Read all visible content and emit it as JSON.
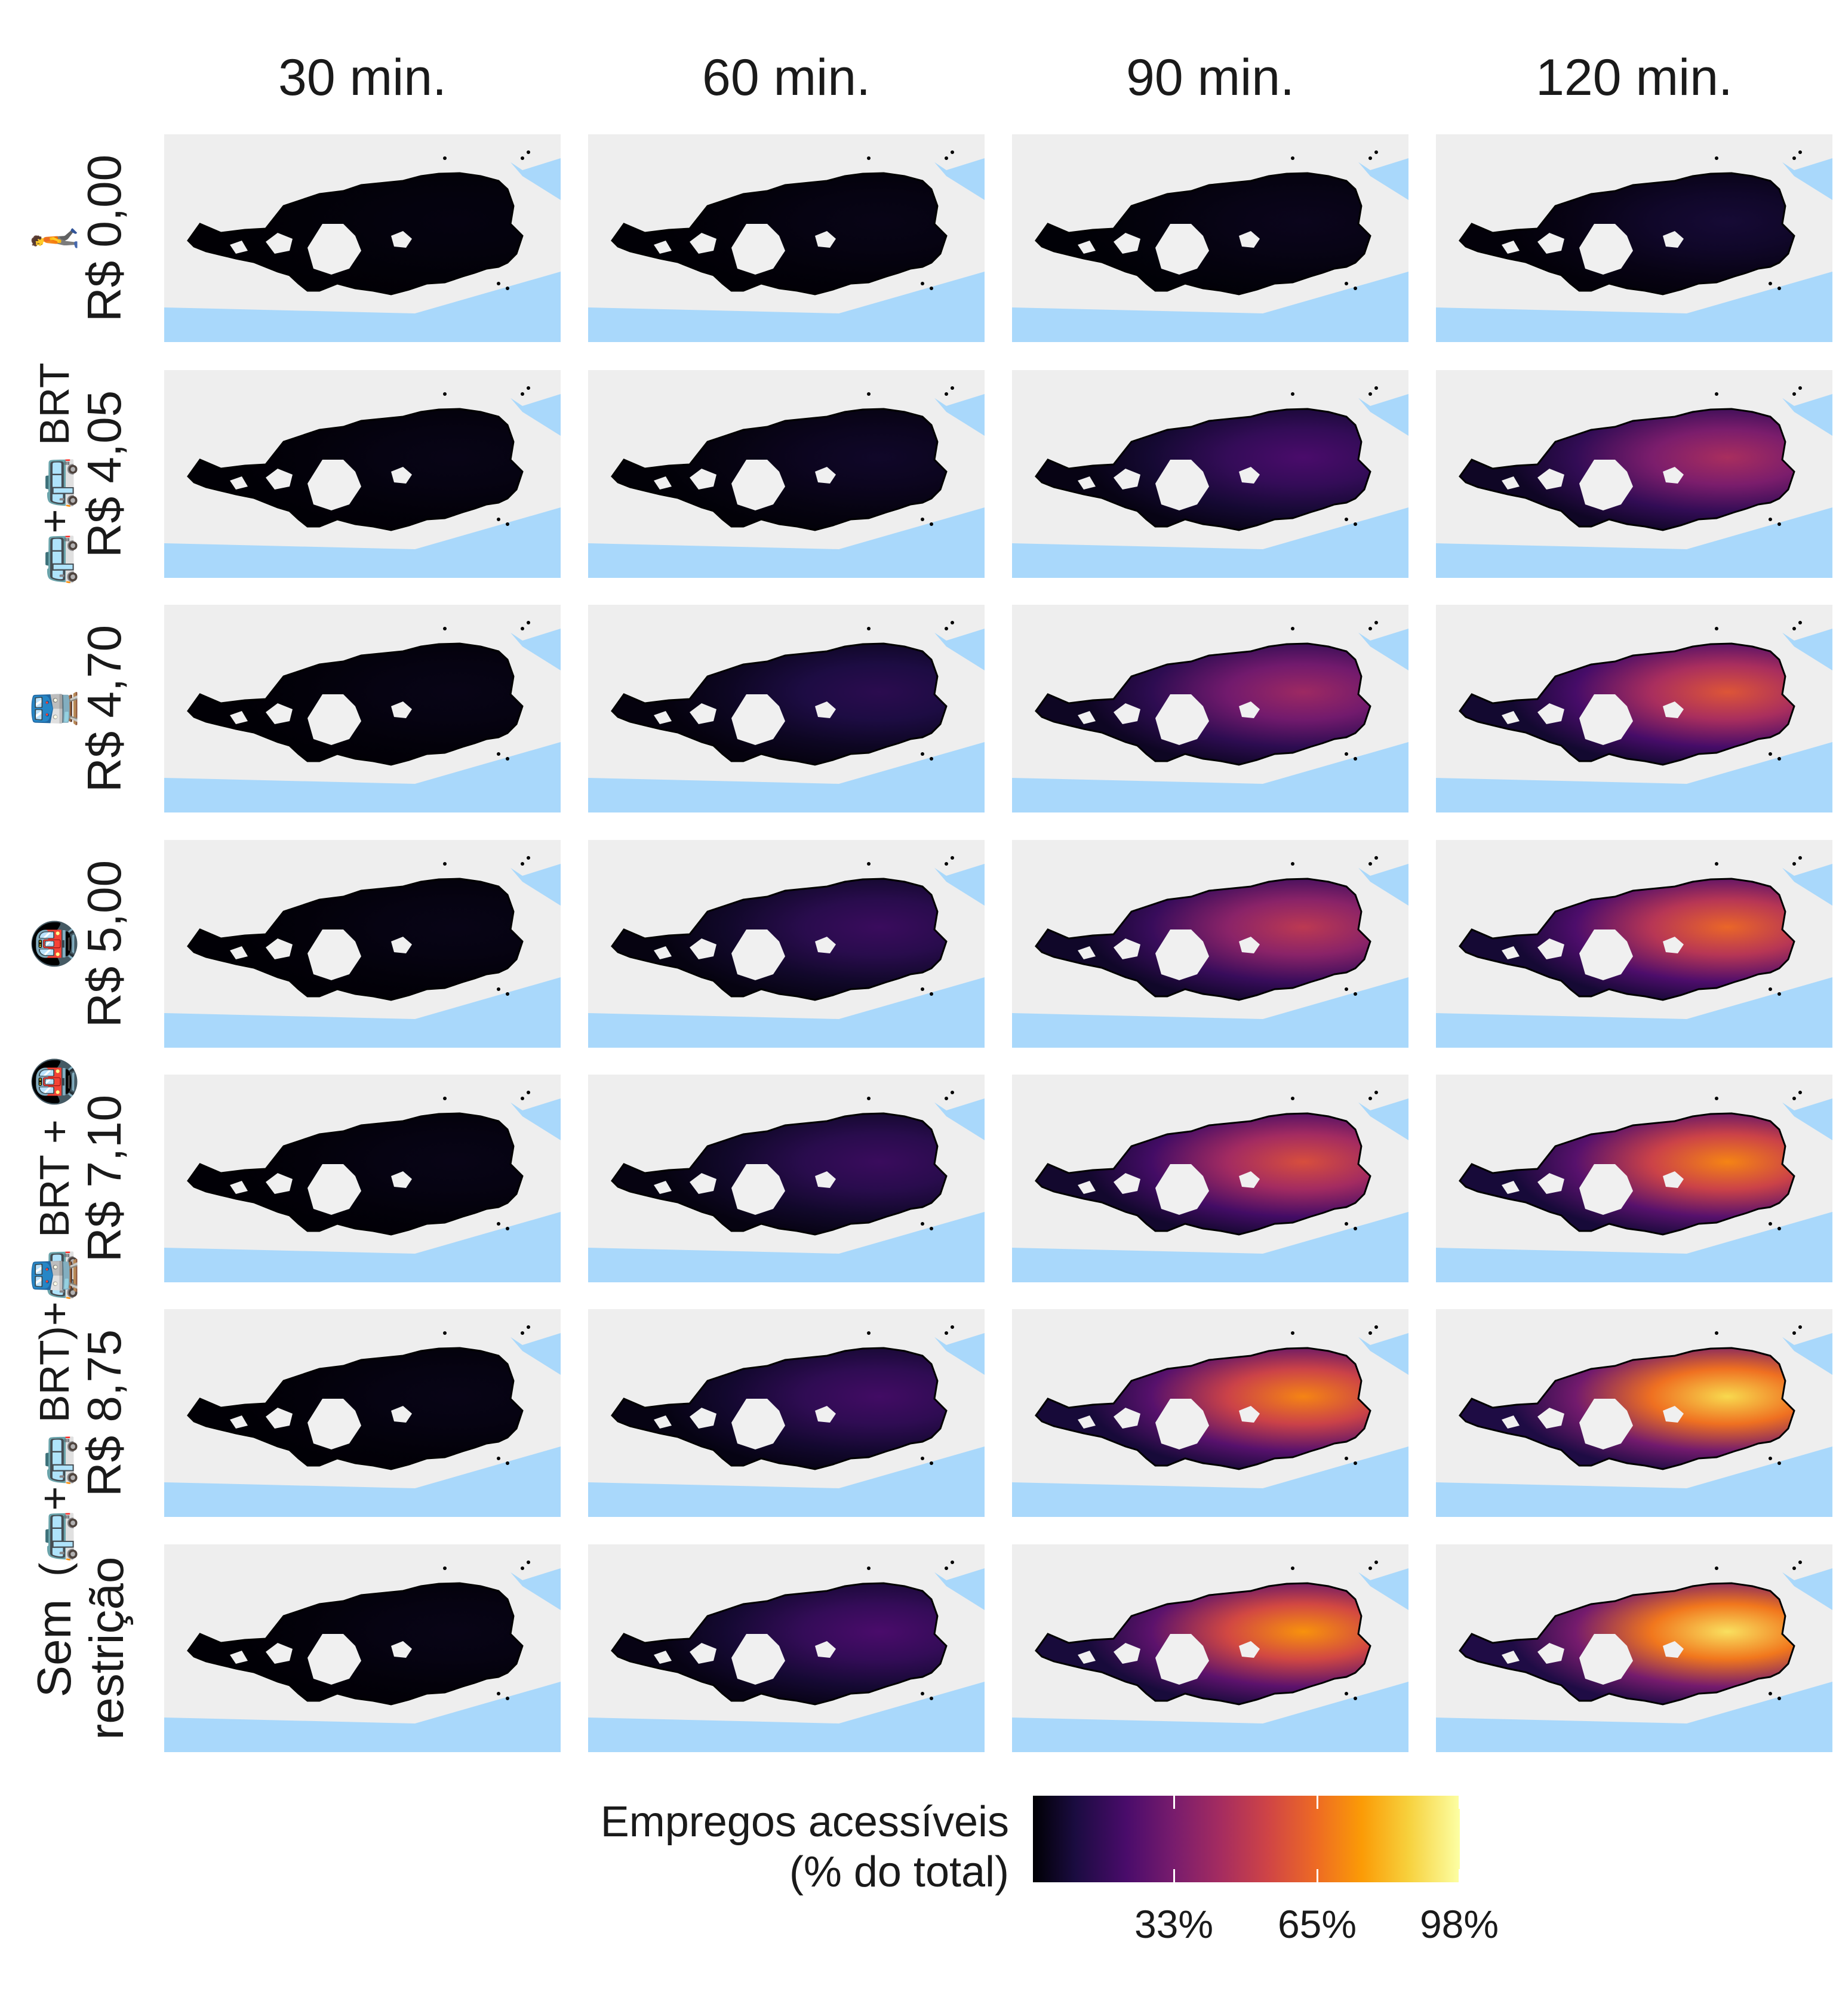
{
  "columns": [
    "30 min.",
    "60 min.",
    "90 min.",
    "120 min."
  ],
  "rows": [
    {
      "icons": "🚶",
      "label": "R$ 0,00"
    },
    {
      "icons": "🚌+🚌 BRT",
      "label": "R$ 4,05"
    },
    {
      "icons": "🚆",
      "label": "R$ 4,70"
    },
    {
      "icons": "🚇",
      "label": "R$ 5,00"
    },
    {
      "icons": "🚌 BRT + 🚇",
      "label": "R$ 7,10"
    },
    {
      "icons": "(🚌+🚌 BRT)+🚆",
      "label": "R$ 8,75"
    },
    {
      "icons": "",
      "label": "Sem\nrestrição"
    }
  ],
  "legend": {
    "title_line1": "Empregos acessíveis",
    "title_line2": "(% do total)",
    "ticks": [
      "33%",
      "65%",
      "98%"
    ],
    "colormap": "inferno",
    "range": [
      0,
      100
    ]
  },
  "colors": {
    "water": "#a9d8fb",
    "land_outside": "#eeeeee",
    "no_data": "#f0f0f0",
    "border": "#000000"
  },
  "map_data": {
    "description_levels": [
      [
        0.02,
        0.03,
        0.04,
        0.08
      ],
      [
        0.03,
        0.06,
        0.22,
        0.45
      ],
      [
        0.03,
        0.14,
        0.42,
        0.6
      ],
      [
        0.03,
        0.18,
        0.5,
        0.65
      ],
      [
        0.03,
        0.18,
        0.58,
        0.72
      ],
      [
        0.03,
        0.2,
        0.72,
        0.9
      ],
      [
        0.03,
        0.22,
        0.75,
        0.92
      ]
    ]
  }
}
